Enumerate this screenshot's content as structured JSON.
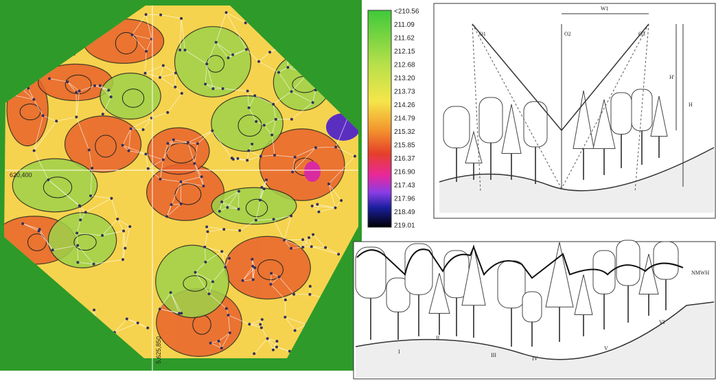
{
  "map": {
    "x_label": "620,400",
    "y_label": "5,625,850"
  },
  "colorbar": {
    "labels": [
      "<210.56",
      "211.09",
      "211.62",
      "212.15",
      "212.68",
      "213.20",
      "213.73",
      "214.26",
      "214.79",
      "215.32",
      "215.85",
      "216.37",
      "216.90",
      "217.43",
      "217.96",
      "218.49",
      "219.01"
    ]
  },
  "diagram_top": {
    "labels": {
      "o1": "O1",
      "o2": "O2",
      "o3": "O3",
      "h": "H",
      "h_prime": "H'",
      "w": "W1"
    }
  },
  "diagram_bottom": {
    "surface_label": "NMWH",
    "zones": [
      "I",
      "II",
      "III",
      "IV",
      "V",
      "VI"
    ]
  }
}
